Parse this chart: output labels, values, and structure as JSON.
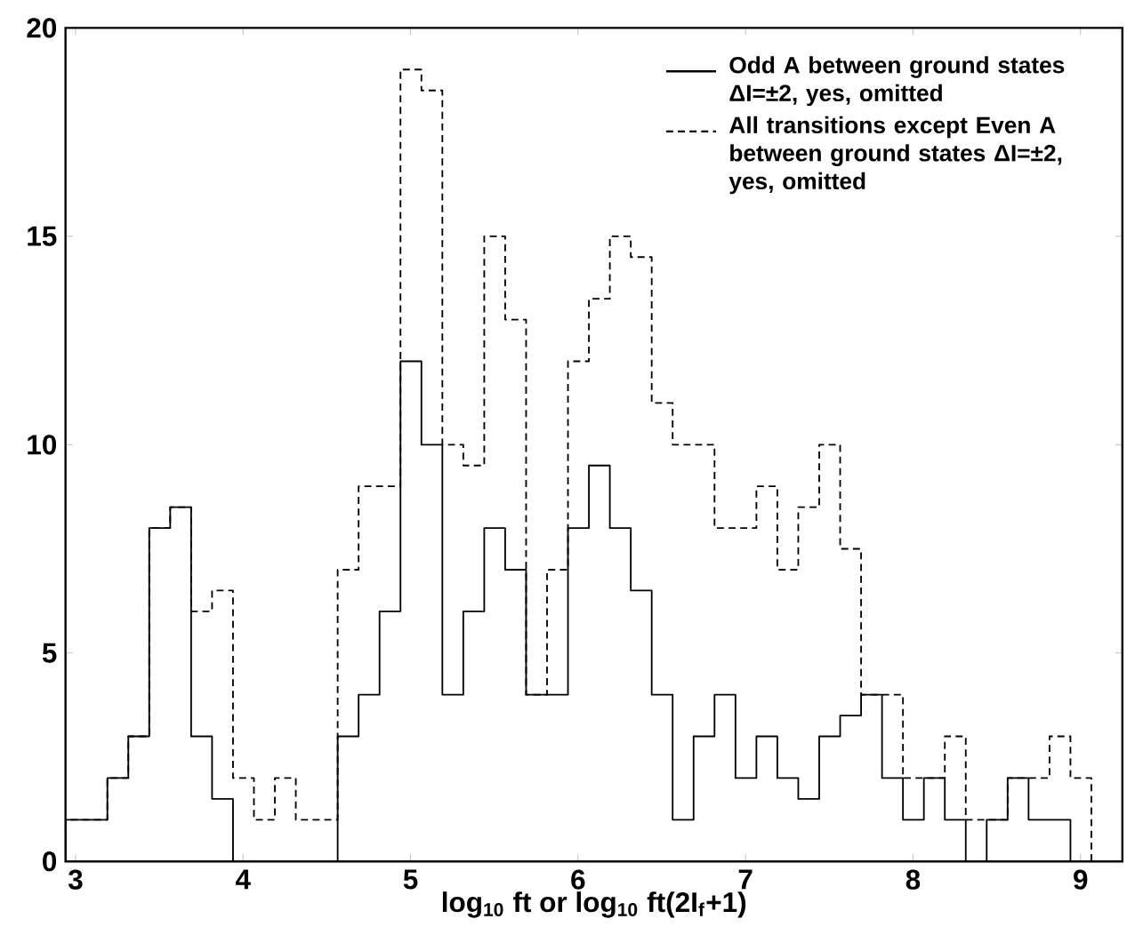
{
  "chart_data": {
    "type": "histogram",
    "xlabel": "log$_{10}$ ft or log$_{10}$ ft(2I$_{f}$+1)",
    "bins": [
      2.94,
      3.065,
      3.19,
      3.315,
      3.44,
      3.565,
      3.69,
      3.815,
      3.94,
      4.065,
      4.19,
      4.315,
      4.44,
      4.565,
      4.69,
      4.815,
      4.94,
      5.065,
      5.19,
      5.315,
      5.44,
      5.565,
      5.69,
      5.815,
      5.94,
      6.065,
      6.19,
      6.315,
      6.44,
      6.565,
      6.69,
      6.815,
      6.94,
      7.065,
      7.19,
      7.315,
      7.44,
      7.565,
      7.69,
      7.815,
      7.94,
      8.065,
      8.19,
      8.315,
      8.44,
      8.565,
      8.69,
      8.815,
      8.94,
      9.065
    ],
    "series": [
      {
        "name": "Odd A between ground states ΔI=±2, yes, omitted",
        "color": "#000000",
        "line_style": "solid",
        "values": [
          1,
          1,
          2,
          3,
          8,
          8.5,
          3,
          1.5,
          0,
          0,
          0,
          0,
          0,
          3,
          4,
          6,
          12,
          10,
          4,
          6,
          8,
          7,
          4,
          4,
          8,
          9.5,
          8,
          6.5,
          4,
          1,
          3,
          4,
          2,
          3,
          2,
          1.5,
          3,
          3.5,
          4,
          2,
          1,
          2,
          1,
          0,
          1,
          2,
          1,
          1,
          0
        ]
      },
      {
        "name": "All transitions except Even A between ground states ΔI=±2, yes, omitted",
        "color": "#000000",
        "line_style": "dashed",
        "values": [
          1,
          1,
          2,
          3,
          8,
          8.5,
          6,
          6.5,
          2,
          1,
          2,
          1,
          1,
          7,
          9,
          9,
          19,
          18.5,
          10,
          9.5,
          15,
          13,
          4,
          7,
          12,
          13.5,
          15,
          14.5,
          11,
          10,
          10,
          8,
          8,
          9,
          7,
          8.5,
          10,
          7.5,
          4,
          4,
          2,
          2,
          3,
          1,
          1,
          2,
          2,
          3,
          2
        ]
      }
    ],
    "xlim": [
      2.94,
      9.25
    ],
    "xticks": [
      3,
      4,
      5,
      6,
      7,
      8,
      9
    ],
    "ylim": [
      0,
      20
    ],
    "yticks": [
      0,
      5,
      10,
      15,
      20
    ],
    "legend": "top right",
    "grid": false
  }
}
